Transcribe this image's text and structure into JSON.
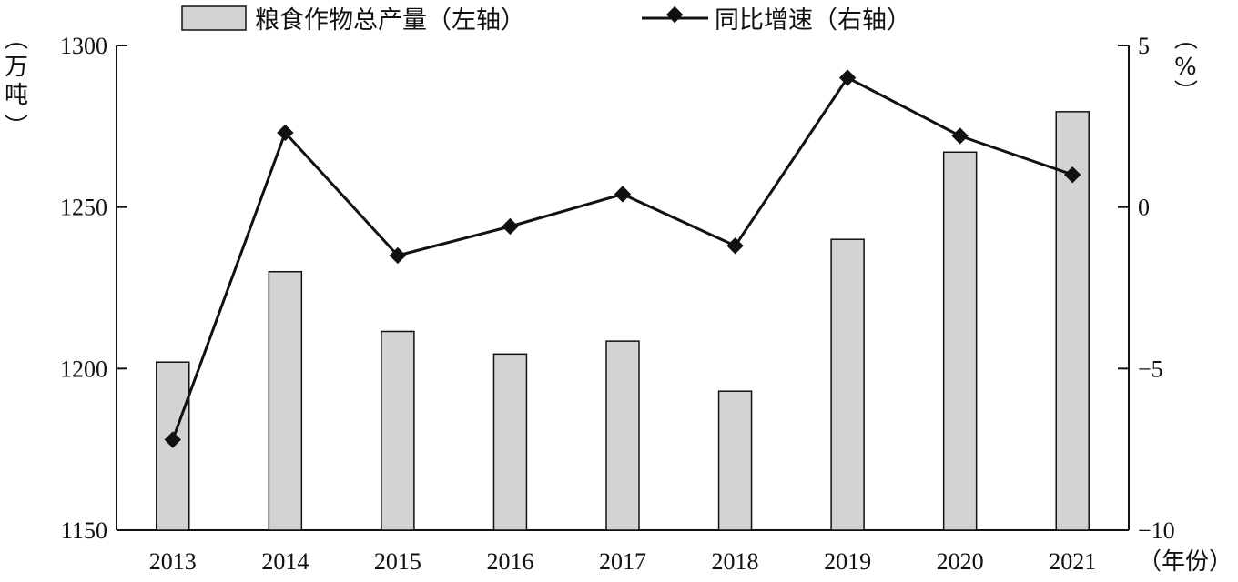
{
  "chart_data": {
    "type": "bar",
    "categories": [
      "2013",
      "2014",
      "2015",
      "2016",
      "2017",
      "2018",
      "2019",
      "2020",
      "2021"
    ],
    "series": [
      {
        "name": "粮食作物总产量（左轴）",
        "type": "bar",
        "axis": "left",
        "values": [
          1202,
          1230,
          1211.5,
          1204.5,
          1208.5,
          1193,
          1240,
          1267,
          1279.5
        ]
      },
      {
        "name": "同比增速（右轴）",
        "type": "line",
        "axis": "right",
        "values": [
          -7.2,
          2.3,
          -1.5,
          -0.6,
          0.4,
          -1.2,
          4.0,
          2.2,
          1.0
        ]
      }
    ],
    "y_left": {
      "label_chars": [
        "（",
        "万",
        "吨",
        "）"
      ],
      "ylim": [
        1150,
        1300
      ],
      "ticks": [
        "1150",
        "1200",
        "1250",
        "1300"
      ]
    },
    "y_right": {
      "label_chars": [
        "（",
        "%",
        "）"
      ],
      "ylim": [
        -10,
        5
      ],
      "ticks": [
        "−10",
        "−5",
        "0",
        "5"
      ]
    },
    "xlabel": "（年份）",
    "legend_position": "top",
    "grid": false,
    "colors": {
      "bar_fill": "#d3d3d3",
      "bar_stroke": "#111111",
      "line": "#111111",
      "marker": "#111111"
    }
  }
}
